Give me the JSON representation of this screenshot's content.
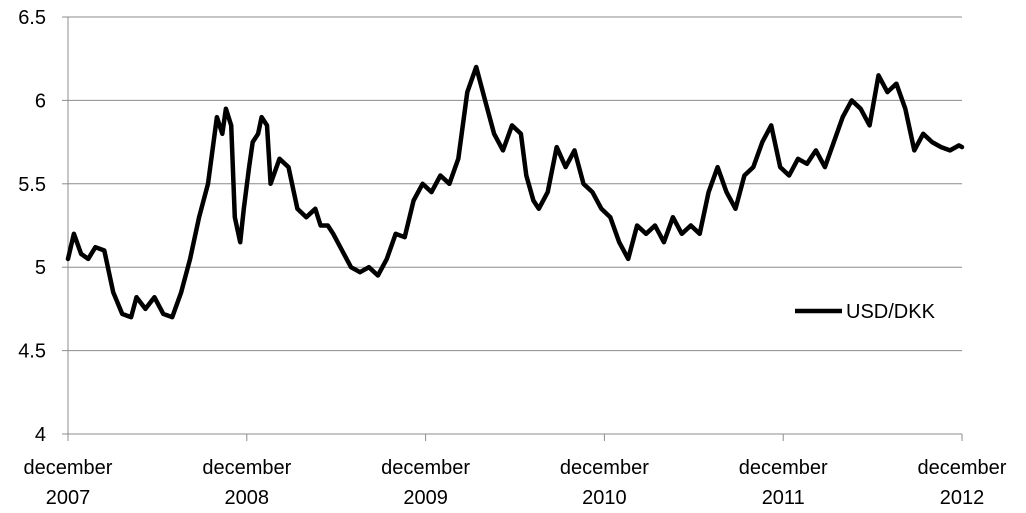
{
  "chart_data": {
    "type": "line",
    "title": "",
    "xlabel": "",
    "ylabel": "",
    "xlim": [
      2007.917,
      2012.917
    ],
    "ylim": [
      4,
      6.5
    ],
    "y_ticks": [
      "4",
      "4.5",
      "5",
      "5.5",
      "6",
      "6.5"
    ],
    "y_tick_values": [
      4,
      4.5,
      5,
      5.5,
      6,
      6.5
    ],
    "x_ticks": [
      {
        "value": 2007.917,
        "line1": "december",
        "line2": "2007"
      },
      {
        "value": 2008.917,
        "line1": "december",
        "line2": "2008"
      },
      {
        "value": 2009.917,
        "line1": "december",
        "line2": "2009"
      },
      {
        "value": 2010.917,
        "line1": "december",
        "line2": "2010"
      },
      {
        "value": 2011.917,
        "line1": "december",
        "line2": "2011"
      },
      {
        "value": 2012.917,
        "line1": "december",
        "line2": "2012"
      }
    ],
    "grid": "horizontal",
    "legend_position": "right",
    "series": [
      {
        "name": "USD/DKK",
        "color": "#000000",
        "x": [
          2007.917,
          2007.95,
          2007.99,
          2008.03,
          2008.07,
          2008.12,
          2008.17,
          2008.22,
          2008.27,
          2008.3,
          2008.35,
          2008.4,
          2008.45,
          2008.5,
          2008.55,
          2008.6,
          2008.65,
          2008.7,
          2008.75,
          2008.78,
          2008.8,
          2008.83,
          2008.85,
          2008.88,
          2008.9,
          2008.93,
          2008.95,
          2008.98,
          2009.0,
          2009.03,
          2009.05,
          2009.1,
          2009.15,
          2009.2,
          2009.25,
          2009.3,
          2009.33,
          2009.37,
          2009.4,
          2009.45,
          2009.5,
          2009.55,
          2009.6,
          2009.65,
          2009.7,
          2009.75,
          2009.8,
          2009.85,
          2009.9,
          2009.95,
          2010.0,
          2010.05,
          2010.1,
          2010.15,
          2010.2,
          2010.25,
          2010.3,
          2010.35,
          2010.4,
          2010.45,
          2010.48,
          2010.52,
          2010.55,
          2010.6,
          2010.65,
          2010.7,
          2010.75,
          2010.8,
          2010.85,
          2010.9,
          2010.95,
          2011.0,
          2011.05,
          2011.1,
          2011.15,
          2011.2,
          2011.25,
          2011.3,
          2011.35,
          2011.4,
          2011.45,
          2011.5,
          2011.55,
          2011.6,
          2011.65,
          2011.7,
          2011.75,
          2011.8,
          2011.85,
          2011.9,
          2011.95,
          2012.0,
          2012.05,
          2012.1,
          2012.15,
          2012.2,
          2012.25,
          2012.3,
          2012.35,
          2012.4,
          2012.45,
          2012.5,
          2012.55,
          2012.6,
          2012.65,
          2012.7,
          2012.75,
          2012.8,
          2012.85,
          2012.9,
          2012.917
        ],
        "y": [
          5.05,
          5.2,
          5.08,
          5.05,
          5.12,
          5.1,
          4.85,
          4.72,
          4.7,
          4.82,
          4.75,
          4.82,
          4.72,
          4.7,
          4.85,
          5.05,
          5.3,
          5.5,
          5.9,
          5.8,
          5.95,
          5.85,
          5.3,
          5.15,
          5.35,
          5.6,
          5.75,
          5.8,
          5.9,
          5.85,
          5.5,
          5.65,
          5.6,
          5.35,
          5.3,
          5.35,
          5.25,
          5.25,
          5.2,
          5.1,
          5.0,
          4.97,
          5.0,
          4.95,
          5.05,
          5.2,
          5.18,
          5.4,
          5.5,
          5.45,
          5.55,
          5.5,
          5.65,
          6.05,
          6.2,
          6.0,
          5.8,
          5.7,
          5.85,
          5.8,
          5.55,
          5.4,
          5.35,
          5.45,
          5.72,
          5.6,
          5.7,
          5.5,
          5.45,
          5.35,
          5.3,
          5.15,
          5.05,
          5.25,
          5.2,
          5.25,
          5.15,
          5.3,
          5.2,
          5.25,
          5.2,
          5.45,
          5.6,
          5.45,
          5.35,
          5.55,
          5.6,
          5.75,
          5.85,
          5.6,
          5.55,
          5.65,
          5.62,
          5.7,
          5.6,
          5.75,
          5.9,
          6.0,
          5.95,
          5.85,
          6.15,
          6.05,
          6.1,
          5.95,
          5.7,
          5.8,
          5.75,
          5.72,
          5.7,
          5.73,
          5.72
        ]
      }
    ]
  }
}
